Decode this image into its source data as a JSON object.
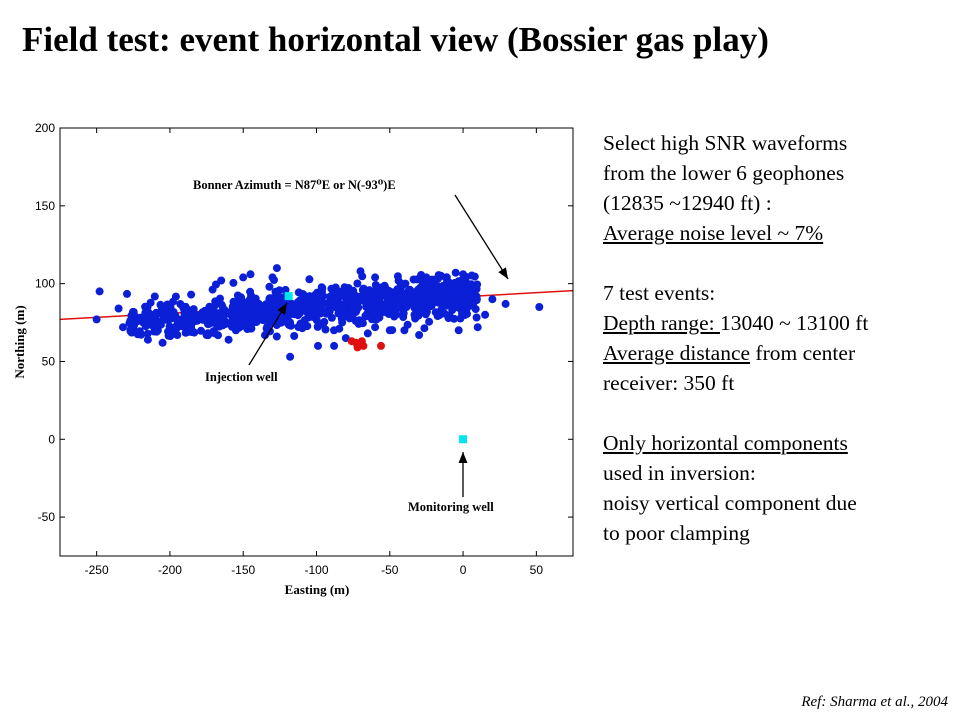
{
  "slide": {
    "title": "Field test: event horizontal view (Bossier gas play)",
    "ref": "Ref: Sharma et al., 2004"
  },
  "notes": {
    "l1": "Select high SNR waveforms",
    "l2": "from the lower 6 geophones",
    "l3": "(12835 ~12940 ft) :",
    "l4": "Average noise level ~ 7%",
    "l5": "7 test events:",
    "l6a": "Depth range: ",
    "l6b": "13040 ~ 13100 ft",
    "l7a": "Average distance",
    "l7b": " from center",
    "l8": "receiver: 350 ft",
    "l9": "Only horizontal components",
    "l10": "used in inversion:",
    "l11": "noisy vertical component due",
    "l12": "to poor clamping"
  },
  "chart_data": {
    "type": "scatter",
    "xlabel": "Easting (m)",
    "ylabel": "Northing (m)",
    "xlim": [
      -275,
      75
    ],
    "ylim": [
      -75,
      200
    ],
    "xticks": [
      -250,
      -200,
      -150,
      -100,
      -50,
      0,
      50
    ],
    "yticks": [
      -50,
      0,
      50,
      100,
      150,
      200
    ],
    "colors": {
      "events": "#0a1fd6",
      "test_events": "#e01010",
      "wells": "#00e5ee",
      "azimuth_line": "#e01010"
    },
    "azimuth_line": {
      "x": [
        -275,
        75
      ],
      "y": [
        77,
        95.5
      ]
    },
    "annotations": {
      "azimuth": "Bonner Azimuth = N87⁰E or N(-93⁰)E",
      "injection": "Injection well",
      "monitoring": "Monitoring well"
    },
    "injection_well": {
      "x": -119,
      "y": 92
    },
    "monitoring_well": {
      "x": 0,
      "y": 0
    },
    "test_events": {
      "x": [
        -76,
        -73,
        -71,
        -69,
        -68,
        -72,
        -56
      ],
      "y": [
        63,
        62,
        61,
        63,
        60,
        59,
        60
      ]
    },
    "events_cloud": {
      "x_range": [
        -230,
        10
      ],
      "y_center": 85,
      "y_spread": 11,
      "count": 900,
      "outliers": [
        {
          "x": -250,
          "y": 77
        },
        {
          "x": -248,
          "y": 95
        },
        {
          "x": -235,
          "y": 84
        },
        {
          "x": -232,
          "y": 72
        },
        {
          "x": -215,
          "y": 64
        },
        {
          "x": -205,
          "y": 62
        },
        {
          "x": -195,
          "y": 67
        },
        {
          "x": -185,
          "y": 70
        },
        {
          "x": -175,
          "y": 67
        },
        {
          "x": -160,
          "y": 64
        },
        {
          "x": -155,
          "y": 70
        },
        {
          "x": -165,
          "y": 102
        },
        {
          "x": -150,
          "y": 104
        },
        {
          "x": -145,
          "y": 106
        },
        {
          "x": -130,
          "y": 104
        },
        {
          "x": -127,
          "y": 110
        },
        {
          "x": -118,
          "y": 53
        },
        {
          "x": -99,
          "y": 60
        },
        {
          "x": -88,
          "y": 60
        },
        {
          "x": -80,
          "y": 65
        },
        {
          "x": -65,
          "y": 68
        },
        {
          "x": -60,
          "y": 72
        },
        {
          "x": -50,
          "y": 70
        },
        {
          "x": -40,
          "y": 70
        },
        {
          "x": -30,
          "y": 67
        },
        {
          "x": -25,
          "y": 104
        },
        {
          "x": -15,
          "y": 105
        },
        {
          "x": -10,
          "y": 101
        },
        {
          "x": -5,
          "y": 107
        },
        {
          "x": 0,
          "y": 106
        },
        {
          "x": -3,
          "y": 70
        },
        {
          "x": 10,
          "y": 72
        },
        {
          "x": 15,
          "y": 80
        },
        {
          "x": 20,
          "y": 90
        },
        {
          "x": 29,
          "y": 87
        },
        {
          "x": 52,
          "y": 85
        },
        {
          "x": -70,
          "y": 108
        },
        {
          "x": -60,
          "y": 104
        }
      ]
    }
  }
}
